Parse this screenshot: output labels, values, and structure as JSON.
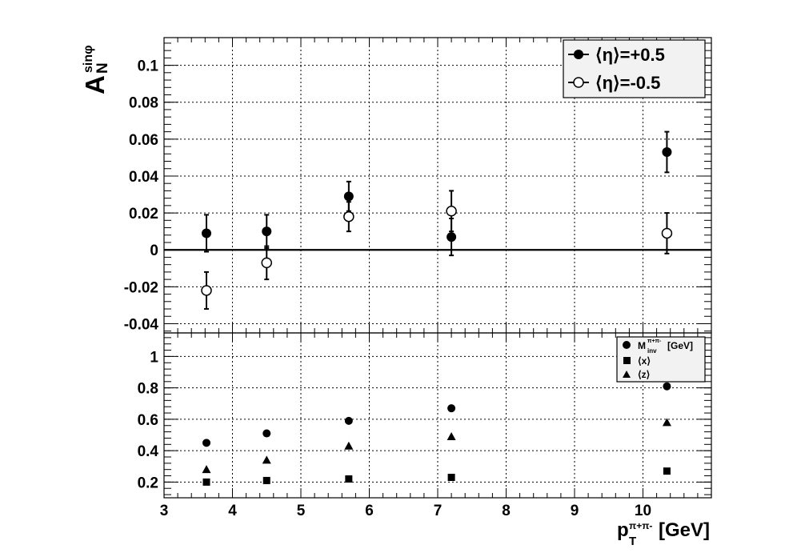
{
  "chart_data": [
    {
      "type": "scatter",
      "ylabel": "A_N^sinφ",
      "ylabel_main": "A",
      "ylabel_sub": "N",
      "ylabel_sup": "sinφ",
      "xlim": [
        3,
        11
      ],
      "ylim": [
        -0.045,
        0.115
      ],
      "x_ticks": [
        "3",
        "4",
        "5",
        "6",
        "7",
        "8",
        "9",
        "10"
      ],
      "y_ticks": [
        "-0.04",
        "-0.02",
        "0",
        "0.02",
        "0.04",
        "0.06",
        "0.08",
        "0.1"
      ],
      "grid": true,
      "legend_position": "top-right",
      "series": [
        {
          "name": "⟨η⟩=+0.5",
          "marker": "filled-circle",
          "x": [
            3.62,
            4.5,
            5.7,
            7.2,
            10.35
          ],
          "y": [
            0.009,
            0.01,
            0.029,
            0.007,
            0.053
          ],
          "yerr": [
            0.01,
            0.009,
            0.008,
            0.01,
            0.011
          ]
        },
        {
          "name": "⟨η⟩=-0.5",
          "marker": "open-circle",
          "x": [
            3.62,
            4.5,
            5.7,
            7.2,
            10.35
          ],
          "y": [
            -0.022,
            -0.007,
            0.018,
            0.021,
            0.009
          ],
          "yerr": [
            0.01,
            0.009,
            0.008,
            0.011,
            0.011
          ]
        }
      ]
    },
    {
      "type": "scatter",
      "xlabel": "p_T^π+π- [GeV]",
      "xlabel_main": "p",
      "xlabel_sub": "T",
      "xlabel_sup": "π+π-",
      "xlabel_unit": "[GeV]",
      "xlim": [
        3,
        11
      ],
      "ylim": [
        0.1,
        1.15
      ],
      "x_ticks": [
        "3",
        "4",
        "5",
        "6",
        "7",
        "8",
        "9",
        "10"
      ],
      "y_ticks": [
        "0.2",
        "0.4",
        "0.6",
        "0.8",
        "1"
      ],
      "grid": true,
      "legend_position": "top-right",
      "series": [
        {
          "name": "M_inv^π+π- [GeV]",
          "name_main": "M",
          "name_sub": "inv",
          "name_sup": "π+π-",
          "name_unit": "[GeV]",
          "marker": "filled-circle",
          "x": [
            3.62,
            4.5,
            5.7,
            7.2,
            10.35
          ],
          "y": [
            0.45,
            0.51,
            0.59,
            0.67,
            0.81
          ]
        },
        {
          "name": "⟨x⟩",
          "marker": "filled-square",
          "x": [
            3.62,
            4.5,
            5.7,
            7.2,
            10.35
          ],
          "y": [
            0.2,
            0.21,
            0.22,
            0.23,
            0.27
          ]
        },
        {
          "name": "⟨z⟩",
          "marker": "filled-triangle",
          "x": [
            3.62,
            4.5,
            5.7,
            7.2,
            10.35
          ],
          "y": [
            0.28,
            0.34,
            0.43,
            0.49,
            0.58
          ]
        }
      ]
    }
  ]
}
